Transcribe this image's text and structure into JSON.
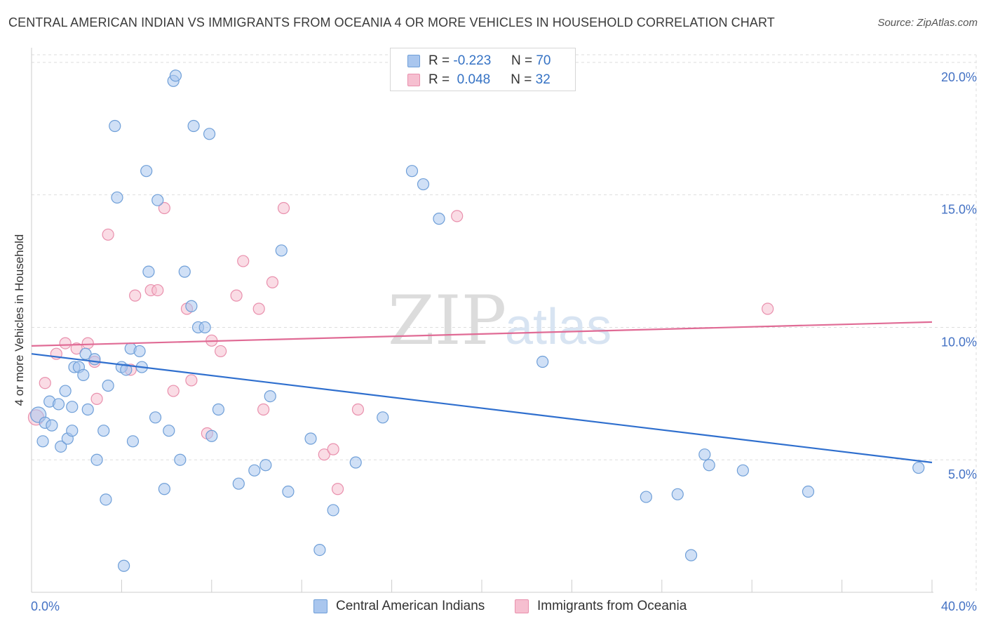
{
  "title": "CENTRAL AMERICAN INDIAN VS IMMIGRANTS FROM OCEANIA 4 OR MORE VEHICLES IN HOUSEHOLD CORRELATION CHART",
  "source": "Source: ZipAtlas.com",
  "watermark": {
    "zip": "ZIP",
    "atlas": "atlas"
  },
  "legend": {
    "series1": {
      "r_label": "R =",
      "r_value": "-0.223",
      "n_label": "N =",
      "n_value": "70"
    },
    "series2": {
      "r_label": "R =",
      "r_value": "0.048",
      "n_label": "N =",
      "n_value": "32"
    }
  },
  "colors": {
    "blue_fill": "#a9c6ee",
    "blue_stroke": "#6f9fd8",
    "blue_line": "#2f6fce",
    "pink_fill": "#f6bfd0",
    "pink_stroke": "#e990ad",
    "pink_line": "#e06b95",
    "tick_text": "#4472c4",
    "grid": "#dddddd"
  },
  "chart_data": {
    "type": "scatter",
    "title": "CENTRAL AMERICAN INDIAN VS IMMIGRANTS FROM OCEANIA 4 OR MORE VEHICLES IN HOUSEHOLD CORRELATION CHART",
    "xlabel": "",
    "ylabel": "4 or more Vehicles in Household",
    "xlim": [
      0,
      40
    ],
    "ylim": [
      0,
      20.5
    ],
    "x_tick_labels": [
      "0.0%",
      "40.0%"
    ],
    "y_ticks": [
      5,
      10,
      15,
      20
    ],
    "y_tick_labels": [
      "5.0%",
      "10.0%",
      "15.0%",
      "20.0%"
    ],
    "series": [
      {
        "name": "Central American Indians",
        "color": "#a9c6ee",
        "trend": {
          "x": [
            0,
            40
          ],
          "y": [
            9.0,
            4.9
          ]
        },
        "points": [
          [
            0.3,
            6.7
          ],
          [
            0.5,
            5.7
          ],
          [
            0.6,
            6.4
          ],
          [
            0.8,
            7.2
          ],
          [
            0.9,
            6.3
          ],
          [
            1.2,
            7.1
          ],
          [
            1.3,
            5.5
          ],
          [
            1.5,
            7.6
          ],
          [
            1.6,
            5.8
          ],
          [
            1.8,
            6.1
          ],
          [
            1.8,
            7.0
          ],
          [
            1.9,
            8.5
          ],
          [
            2.1,
            8.5
          ],
          [
            2.3,
            8.2
          ],
          [
            2.4,
            9.0
          ],
          [
            2.5,
            6.9
          ],
          [
            2.8,
            8.8
          ],
          [
            2.9,
            5.0
          ],
          [
            3.2,
            6.1
          ],
          [
            3.3,
            3.5
          ],
          [
            3.4,
            7.8
          ],
          [
            3.7,
            17.6
          ],
          [
            3.8,
            14.9
          ],
          [
            4.0,
            8.5
          ],
          [
            4.1,
            1.0
          ],
          [
            4.2,
            8.4
          ],
          [
            4.4,
            9.2
          ],
          [
            4.5,
            5.7
          ],
          [
            4.8,
            9.1
          ],
          [
            4.9,
            8.5
          ],
          [
            5.1,
            15.9
          ],
          [
            5.2,
            12.1
          ],
          [
            5.5,
            6.6
          ],
          [
            5.6,
            14.8
          ],
          [
            5.9,
            3.9
          ],
          [
            6.1,
            6.1
          ],
          [
            6.3,
            19.3
          ],
          [
            6.4,
            19.5
          ],
          [
            6.6,
            5.0
          ],
          [
            6.8,
            12.1
          ],
          [
            7.1,
            10.8
          ],
          [
            7.2,
            17.6
          ],
          [
            7.4,
            10.0
          ],
          [
            7.7,
            10.0
          ],
          [
            7.9,
            17.3
          ],
          [
            8.0,
            5.9
          ],
          [
            8.3,
            6.9
          ],
          [
            9.2,
            4.1
          ],
          [
            9.9,
            4.6
          ],
          [
            10.4,
            4.8
          ],
          [
            10.6,
            7.4
          ],
          [
            11.1,
            12.9
          ],
          [
            11.4,
            3.8
          ],
          [
            12.4,
            5.8
          ],
          [
            12.8,
            1.6
          ],
          [
            13.4,
            3.1
          ],
          [
            14.4,
            4.9
          ],
          [
            15.6,
            6.6
          ],
          [
            16.9,
            15.9
          ],
          [
            17.4,
            15.4
          ],
          [
            18.1,
            14.1
          ],
          [
            22.7,
            8.7
          ],
          [
            27.3,
            3.6
          ],
          [
            28.7,
            3.7
          ],
          [
            29.3,
            1.4
          ],
          [
            29.9,
            5.2
          ],
          [
            30.1,
            4.8
          ],
          [
            31.6,
            4.6
          ],
          [
            34.5,
            3.8
          ],
          [
            39.4,
            4.7
          ]
        ]
      },
      {
        "name": "Immigrants from Oceania",
        "color": "#f6bfd0",
        "trend": {
          "x": [
            0,
            40
          ],
          "y": [
            9.3,
            10.2
          ]
        },
        "points": [
          [
            0.2,
            6.6
          ],
          [
            0.6,
            7.9
          ],
          [
            1.1,
            9.0
          ],
          [
            1.5,
            9.4
          ],
          [
            2.0,
            9.2
          ],
          [
            2.5,
            9.4
          ],
          [
            2.8,
            8.7
          ],
          [
            2.9,
            7.3
          ],
          [
            3.4,
            13.5
          ],
          [
            4.4,
            8.4
          ],
          [
            4.6,
            11.2
          ],
          [
            5.3,
            11.4
          ],
          [
            5.6,
            11.4
          ],
          [
            5.9,
            14.5
          ],
          [
            6.3,
            7.6
          ],
          [
            6.9,
            10.7
          ],
          [
            7.1,
            8.0
          ],
          [
            7.8,
            6.0
          ],
          [
            8.0,
            9.5
          ],
          [
            8.4,
            9.1
          ],
          [
            9.1,
            11.2
          ],
          [
            9.4,
            12.5
          ],
          [
            10.1,
            10.7
          ],
          [
            10.3,
            6.9
          ],
          [
            10.7,
            11.7
          ],
          [
            11.2,
            14.5
          ],
          [
            13.0,
            5.2
          ],
          [
            13.4,
            5.4
          ],
          [
            13.6,
            3.9
          ],
          [
            14.5,
            6.9
          ],
          [
            18.9,
            14.2
          ],
          [
            32.7,
            10.7
          ]
        ]
      }
    ],
    "legend_position": "top-center"
  }
}
